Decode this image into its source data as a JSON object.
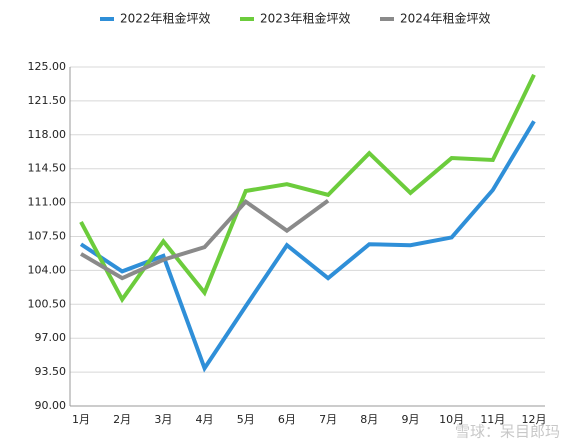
{
  "chart_data": {
    "type": "line",
    "categories": [
      "1月",
      "2月",
      "3月",
      "4月",
      "5月",
      "6月",
      "7月",
      "8月",
      "9月",
      "10月",
      "11月",
      "12月"
    ],
    "series": [
      {
        "name": "2022年租金坪效",
        "color": "#2f8fd8",
        "values": [
          106.7,
          103.9,
          105.5,
          93.9,
          100.3,
          106.6,
          103.2,
          106.7,
          106.6,
          107.4,
          112.3,
          119.4
        ]
      },
      {
        "name": "2023年租金坪效",
        "color": "#6ccc3c",
        "values": [
          109.0,
          101.0,
          107.0,
          101.7,
          112.2,
          112.9,
          111.8,
          116.1,
          112.0,
          115.6,
          115.4,
          124.2
        ]
      },
      {
        "name": "2024年租金坪效",
        "color": "#8a8a8a",
        "values": [
          105.7,
          103.2,
          105.1,
          106.4,
          111.1,
          108.1,
          111.2,
          null,
          null,
          null,
          null,
          null
        ]
      }
    ],
    "ylim": [
      90,
      125
    ],
    "yticks": [
      {
        "value": 90,
        "label": "90.00"
      },
      {
        "value": 93.5,
        "label": "93.50"
      },
      {
        "value": 97,
        "label": "97.00"
      },
      {
        "value": 100.5,
        "label": "100.50"
      },
      {
        "value": 104,
        "label": "104.00"
      },
      {
        "value": 107.5,
        "label": "107.50"
      },
      {
        "value": 111,
        "label": "111.00"
      },
      {
        "value": 114.5,
        "label": "114.50"
      },
      {
        "value": 118,
        "label": "118.00"
      },
      {
        "value": 121.5,
        "label": "121.50"
      },
      {
        "value": 125,
        "label": "125.00"
      }
    ],
    "grid": true,
    "legend": "top",
    "watermark": "雪球：呆目郎玛"
  }
}
